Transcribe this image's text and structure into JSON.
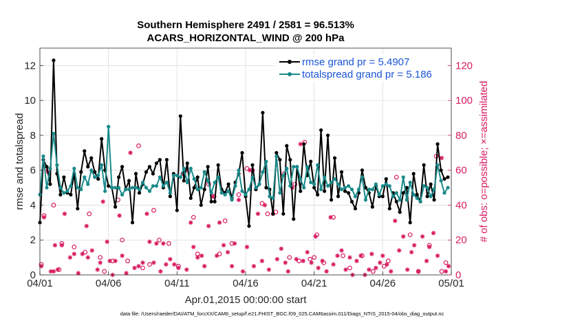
{
  "chart_data": {
    "type": "line",
    "title_line1": "Southern Hemisphere 2491 / 2581 = 96.513%",
    "title_line2": "ACARS_HORIZONTAL_WIND @ 200 hPa",
    "xlabel": "Apr.01,2015 00:00:00 start",
    "ylabel_left": "rmse and totalspread",
    "ylabel_right": "# of obs: o=possible; ×=assimilated",
    "xlim": [
      0,
      30
    ],
    "ylim_left": [
      0,
      13
    ],
    "ylim_right": [
      0,
      130
    ],
    "x_ticks": [
      0,
      5,
      10,
      15,
      20,
      25,
      30
    ],
    "x_tick_labels": [
      "04/01",
      "04/06",
      "04/11",
      "04/16",
      "04/21",
      "04/26",
      "05/01"
    ],
    "y_left_ticks": [
      0,
      2,
      4,
      6,
      8,
      10,
      12
    ],
    "y_right_ticks": [
      0,
      20,
      40,
      60,
      80,
      100,
      120
    ],
    "legend": [
      {
        "label": "rmse grand pr = 5.4907",
        "color": "#000000"
      },
      {
        "label": "totalspread grand pr = 5.186",
        "color": "#1a8a8a"
      }
    ],
    "footnote": "data file: /Users/raeder/DAI/ATM_forcXX/CAM6_setup/f.e21.FHIST_BGC.f09_025.CAM6assim.011/Diags_NTrS_2015-04/obs_diag_output.nc",
    "series": [
      {
        "name": "rmse",
        "color": "#000000",
        "axis": "left",
        "x": [
          0,
          0.25,
          0.5,
          0.75,
          1.0,
          1.25,
          1.5,
          1.75,
          2.0,
          2.25,
          2.5,
          2.75,
          3.0,
          3.25,
          3.5,
          3.75,
          4.0,
          4.25,
          4.5,
          4.75,
          5.0,
          5.25,
          5.5,
          5.75,
          6.0,
          6.25,
          6.5,
          6.75,
          7.0,
          7.25,
          7.5,
          7.75,
          8.0,
          8.25,
          8.5,
          8.75,
          9.0,
          9.25,
          9.5,
          9.75,
          10.0,
          10.25,
          10.5,
          10.75,
          11.0,
          11.25,
          11.5,
          11.75,
          12.0,
          12.25,
          12.5,
          12.75,
          13.0,
          13.25,
          13.5,
          13.75,
          14.0,
          14.25,
          14.5,
          14.75,
          15.0,
          15.25,
          15.5,
          15.75,
          16.0,
          16.25,
          16.5,
          16.75,
          17.0,
          17.25,
          17.5,
          17.75,
          18.0,
          18.25,
          18.5,
          18.75,
          19.0,
          19.25,
          19.5,
          19.75,
          20.0,
          20.25,
          20.5,
          20.75,
          21.0,
          21.25,
          21.5,
          21.75,
          22.0,
          22.25,
          22.5,
          22.75,
          23.0,
          23.25,
          23.5,
          23.75,
          24.0,
          24.25,
          24.5,
          24.75,
          25.0,
          25.25,
          25.5,
          25.75,
          26.0,
          26.25,
          26.5,
          26.75,
          27.0,
          27.25,
          27.5,
          27.75,
          28.0,
          28.25,
          28.5,
          28.75,
          29.0,
          29.25,
          29.5,
          29.75
        ],
        "values": [
          3.0,
          6.6,
          6.2,
          5.2,
          12.3,
          5.8,
          4.6,
          5.6,
          4.7,
          4.6,
          5.8,
          3.8,
          5.9,
          7.1,
          6.2,
          6.7,
          5.9,
          5.5,
          7.8,
          6.0,
          5.1,
          5.0,
          3.9,
          5.6,
          6.2,
          4.9,
          5.4,
          3.0,
          5.8,
          4.7,
          5.2,
          5.9,
          6.2,
          5.8,
          6.4,
          6.6,
          5.0,
          6.6,
          4.5,
          5.8,
          3.7,
          9.1,
          5.4,
          6.4,
          4.4,
          5.0,
          5.6,
          4.0,
          4.9,
          6.2,
          4.2,
          4.2,
          6.3,
          4.9,
          4.7,
          5.2,
          4.4,
          5.3,
          5.8,
          7.0,
          4.5,
          2.8,
          6.3,
          4.9,
          5.2,
          9.3,
          5.0,
          4.9,
          3.5,
          7.0,
          6.6,
          3.5,
          7.4,
          6.6,
          3.2,
          6.2,
          4.8,
          7.5,
          5.7,
          6.5,
          5.0,
          4.6,
          8.3,
          4.8,
          8.0,
          4.3,
          6.7,
          4.5,
          5.9,
          4.8,
          4.7,
          4.2,
          3.8,
          4.7,
          6.0,
          5.0,
          4.7,
          3.9,
          5.1,
          4.5,
          4.5,
          5.5,
          3.8,
          4.7,
          4.2,
          3.6,
          4.7,
          5.0,
          3.0,
          5.8,
          4.6,
          4.2,
          6.3,
          4.5,
          5.2,
          4.3,
          7.5,
          6.0,
          5.5,
          5.6
        ]
      },
      {
        "name": "totalspread",
        "color": "#1a8a8a",
        "axis": "left",
        "x": [
          0,
          0.25,
          0.5,
          0.75,
          1.0,
          1.25,
          1.5,
          1.75,
          2.0,
          2.25,
          2.5,
          2.75,
          3.0,
          3.25,
          3.5,
          3.75,
          4.0,
          4.25,
          4.5,
          4.75,
          5.0,
          5.25,
          5.5,
          5.75,
          6.0,
          6.25,
          6.5,
          6.75,
          7.0,
          7.25,
          7.5,
          7.75,
          8.0,
          8.25,
          8.5,
          8.75,
          9.0,
          9.25,
          9.5,
          9.75,
          10.0,
          10.25,
          10.5,
          10.75,
          11.0,
          11.25,
          11.5,
          11.75,
          12.0,
          12.25,
          12.5,
          12.75,
          13.0,
          13.25,
          13.5,
          13.75,
          14.0,
          14.25,
          14.5,
          14.75,
          15.0,
          15.25,
          15.5,
          15.75,
          16.0,
          16.25,
          16.5,
          16.75,
          17.0,
          17.25,
          17.5,
          17.75,
          18.0,
          18.25,
          18.5,
          18.75,
          19.0,
          19.25,
          19.5,
          19.75,
          20.0,
          20.25,
          20.5,
          20.75,
          21.0,
          21.25,
          21.5,
          21.75,
          22.0,
          22.25,
          22.5,
          22.75,
          23.0,
          23.25,
          23.5,
          23.75,
          24.0,
          24.25,
          24.5,
          24.75,
          25.0,
          25.25,
          25.5,
          25.75,
          26.0,
          26.25,
          26.5,
          26.75,
          27.0,
          27.25,
          27.5,
          27.75,
          28.0,
          28.25,
          28.5,
          28.75,
          29.0,
          29.25,
          29.5,
          29.75
        ],
        "values": [
          4.6,
          6.8,
          5.0,
          6.1,
          8.1,
          6.3,
          5.0,
          4.7,
          4.8,
          5.1,
          6.1,
          5.0,
          4.9,
          5.6,
          5.2,
          6.0,
          5.6,
          5.7,
          6.3,
          4.8,
          8.5,
          5.0,
          5.0,
          5.0,
          4.6,
          4.9,
          4.9,
          5.0,
          5.0,
          4.9,
          5.3,
          5.0,
          4.8,
          5.1,
          5.1,
          5.6,
          5.1,
          5.3,
          4.7,
          5.7,
          5.7,
          5.6,
          6.1,
          5.3,
          6.1,
          5.5,
          4.9,
          5.0,
          5.9,
          5.4,
          4.7,
          5.3,
          5.6,
          4.7,
          4.6,
          4.8,
          4.3,
          5.1,
          6.0,
          4.8,
          4.6,
          4.9,
          5.6,
          5.0,
          5.2,
          5.9,
          6.5,
          4.5,
          4.4,
          6.8,
          4.7,
          5.7,
          6.1,
          5.1,
          6.2,
          6.2,
          5.5,
          5.0,
          6.2,
          5.3,
          5.2,
          6.3,
          4.9,
          5.6,
          5.1,
          5.3,
          5.5,
          5.2,
          4.9,
          5.0,
          5.1,
          4.9,
          4.5,
          4.9,
          5.6,
          4.3,
          4.9,
          4.9,
          5.2,
          4.6,
          5.1,
          5.2,
          5.1,
          4.5,
          4.7,
          4.3,
          5.6,
          4.3,
          5.3,
          4.6,
          4.4,
          4.2,
          5.1,
          5.0,
          4.5,
          4.9,
          6.3,
          5.4,
          4.7,
          5.0
        ]
      },
      {
        "name": "obs possible",
        "color": "#d81b60",
        "axis": "right",
        "marker": "circle",
        "x": [
          0.1,
          0.3,
          0.6,
          1.0,
          1.4,
          1.6,
          2.5,
          3.3,
          3.6,
          4.4,
          4.7,
          5.3,
          5.7,
          6.0,
          6.4,
          7.2,
          7.5,
          8.0,
          8.3,
          8.7,
          9.4,
          10.1,
          10.6,
          11.2,
          11.5,
          12.3,
          12.7,
          13.1,
          13.5,
          14.0,
          14.5,
          15.1,
          15.5,
          16.2,
          16.6,
          17.2,
          17.8,
          18.2,
          18.6,
          18.9,
          19.3,
          19.7,
          20.0,
          20.2,
          20.7,
          21.4,
          22.1,
          22.6,
          23.5,
          24.3,
          25.1,
          25.4,
          26.0,
          27.0,
          27.6,
          28.4,
          28.9,
          29.3,
          29.6
        ],
        "values": [
          6,
          34,
          60,
          40,
          3,
          18,
          16,
          13,
          35,
          10,
          2,
          8,
          43,
          20,
          8,
          74,
          4,
          6,
          37,
          20,
          18,
          5,
          60,
          33,
          12,
          52,
          45,
          12,
          31,
          18,
          46,
          61,
          60,
          41,
          35,
          36,
          58,
          10,
          52,
          8,
          76,
          9,
          10,
          23,
          7,
          33,
          11,
          4,
          11,
          2,
          5,
          8,
          56,
          23,
          2,
          17,
          68,
          2,
          7
        ]
      },
      {
        "name": "obs assimilated",
        "color": "#d81b60",
        "axis": "right",
        "marker": "asterisk",
        "x": [
          0.1,
          0.3,
          0.6,
          0.8,
          1.0,
          1.1,
          1.3,
          1.6,
          1.8,
          2.2,
          2.5,
          2.8,
          3.1,
          3.4,
          3.5,
          3.8,
          4.2,
          4.4,
          4.6,
          4.9,
          5.1,
          5.3,
          5.5,
          5.8,
          6.0,
          6.3,
          6.6,
          6.9,
          7.2,
          7.5,
          7.8,
          8.0,
          8.3,
          8.5,
          8.8,
          9.0,
          9.2,
          9.5,
          9.8,
          10.1,
          10.4,
          10.7,
          11.0,
          11.2,
          11.5,
          11.8,
          12.0,
          12.3,
          12.6,
          12.9,
          13.1,
          13.4,
          13.7,
          14.0,
          14.2,
          14.5,
          14.8,
          15.1,
          15.3,
          15.6,
          15.9,
          16.2,
          16.4,
          16.7,
          17.0,
          17.3,
          17.6,
          17.9,
          18.1,
          18.4,
          18.7,
          19.0,
          19.2,
          19.5,
          19.8,
          20.1,
          20.3,
          20.6,
          20.9,
          21.2,
          21.4,
          21.7,
          22.0,
          22.3,
          22.6,
          22.8,
          23.1,
          23.4,
          23.7,
          24.0,
          24.2,
          24.5,
          24.8,
          25.0,
          25.3,
          25.6,
          25.9,
          26.2,
          26.5,
          26.8,
          27.1,
          27.3,
          27.6,
          27.9,
          28.2,
          28.4,
          28.7,
          29.0,
          29.3,
          29.6,
          29.8
        ],
        "values": [
          5,
          33,
          59,
          2,
          2,
          17,
          3,
          17,
          35,
          10,
          12,
          1,
          12,
          28,
          10,
          14,
          3,
          7,
          42,
          19,
          8,
          0,
          8,
          34,
          11,
          1,
          70,
          4,
          5,
          7,
          35,
          19,
          7,
          18,
          2,
          18,
          6,
          9,
          6,
          4,
          58,
          3,
          30,
          16,
          10,
          11,
          5,
          28,
          45,
          11,
          30,
          17,
          13,
          5,
          18,
          43,
          2,
          16,
          60,
          5,
          35,
          8,
          40,
          3,
          35,
          9,
          15,
          7,
          2,
          50,
          9,
          75,
          8,
          13,
          7,
          22,
          4,
          8,
          2,
          33,
          6,
          11,
          14,
          3,
          10,
          0,
          8,
          11,
          0,
          3,
          12,
          4,
          7,
          11,
          6,
          2,
          31,
          14,
          22,
          3,
          13,
          17,
          2,
          22,
          8,
          16,
          24,
          11,
          67,
          2,
          5
        ]
      }
    ]
  }
}
